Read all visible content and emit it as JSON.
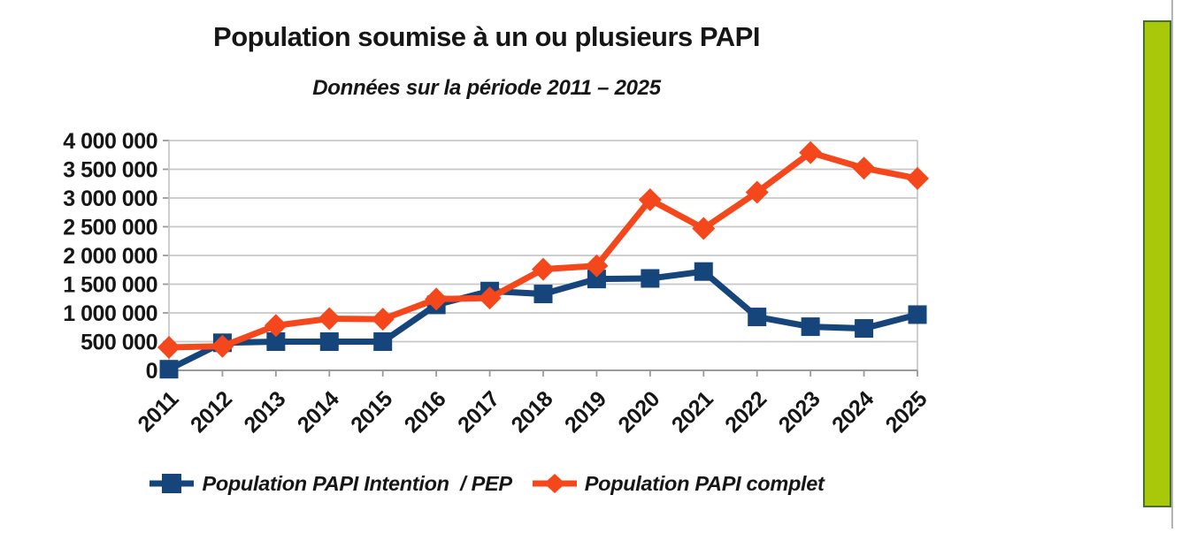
{
  "chart_data": {
    "type": "line",
    "title": "Population soumise à un ou plusieurs PAPI",
    "subtitle": "Données sur la période 2011 – 2025",
    "xlabel": "",
    "ylabel": "",
    "categories": [
      "2011",
      "2012",
      "2013",
      "2014",
      "2015",
      "2016",
      "2017",
      "2018",
      "2019",
      "2020",
      "2021",
      "2022",
      "2023",
      "2024",
      "2025"
    ],
    "series": [
      {
        "name": "Population PAPI Intention  / PEP",
        "color": "#16457c",
        "marker": "square",
        "values": [
          20000,
          480000,
          500000,
          500000,
          500000,
          1140000,
          1380000,
          1330000,
          1590000,
          1600000,
          1720000,
          930000,
          760000,
          730000,
          970000
        ]
      },
      {
        "name": "Population PAPI complet",
        "color": "#f4481c",
        "marker": "diamond",
        "values": [
          400000,
          420000,
          780000,
          900000,
          890000,
          1240000,
          1260000,
          1760000,
          1820000,
          2970000,
          2470000,
          3100000,
          3790000,
          3520000,
          3340000
        ]
      }
    ],
    "ylim": [
      0,
      4000000
    ],
    "ytick_step": 500000,
    "y_tick_labels": [
      "0",
      "500 000",
      "1 000 000",
      "1 500 000",
      "2 000 000",
      "2 500 000",
      "3 000 000",
      "3 500 000",
      "4 000 000"
    ],
    "grid": "horizontal",
    "legend_position": "bottom"
  },
  "colors": {
    "gridline": "#c8c8c8",
    "axis": "#9a9a9a",
    "green_bar_fill": "#aac80a",
    "green_bar_border": "#46702f",
    "edge_line": "#b4b4b4"
  }
}
